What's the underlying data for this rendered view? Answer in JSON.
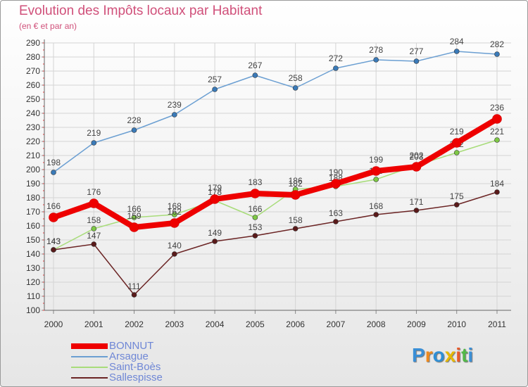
{
  "title": "Evolution des Impôts locaux par Habitant",
  "subtitle": "(en € et par an)",
  "chart_data": {
    "type": "line",
    "title": "Evolution des Impôts locaux par Habitant",
    "subtitle": "(en € et par an)",
    "xlabel": "",
    "ylabel": "",
    "ylim": [
      100,
      290
    ],
    "ytick_step": 10,
    "grid": true,
    "legend_position": "bottom-left",
    "categories": [
      "2000",
      "2001",
      "2002",
      "2003",
      "2004",
      "2005",
      "2006",
      "2007",
      "2008",
      "2009",
      "2010",
      "2011"
    ],
    "series": [
      {
        "name": "Arsague",
        "color": "#6b9fd2",
        "marker": "#3a7ab8",
        "values": [
          198,
          219,
          228,
          239,
          257,
          267,
          258,
          272,
          278,
          277,
          284,
          282
        ]
      },
      {
        "name": "Saint-Boès",
        "color": "#a8dc7a",
        "marker": "#7ec845",
        "values": [
          143,
          158,
          166,
          168,
          178,
          166,
          186,
          188,
          193,
          203,
          212,
          221
        ]
      },
      {
        "name": "Sallespisse",
        "color": "#6b2424",
        "marker": "#5a1a1a",
        "values": [
          143,
          147,
          111,
          140,
          149,
          153,
          158,
          163,
          168,
          171,
          175,
          184
        ]
      },
      {
        "name": "BONNUT",
        "color": "#ee0000",
        "marker": "#ee0000",
        "values": [
          166,
          176,
          159,
          162,
          179,
          183,
          182,
          190,
          199,
          202,
          219,
          236
        ]
      }
    ],
    "legend_order": [
      "BONNUT",
      "Arsague",
      "Saint-Boès",
      "Sallespisse"
    ]
  },
  "logo": {
    "letters": [
      "P",
      "r",
      "o",
      "x",
      "i",
      "t",
      "i"
    ],
    "colors": [
      "#3a8fd6",
      "#f08a1c",
      "#2e8fd6",
      "#e6b800",
      "#e85a2a",
      "#52b848",
      "#3a8fd6"
    ]
  }
}
